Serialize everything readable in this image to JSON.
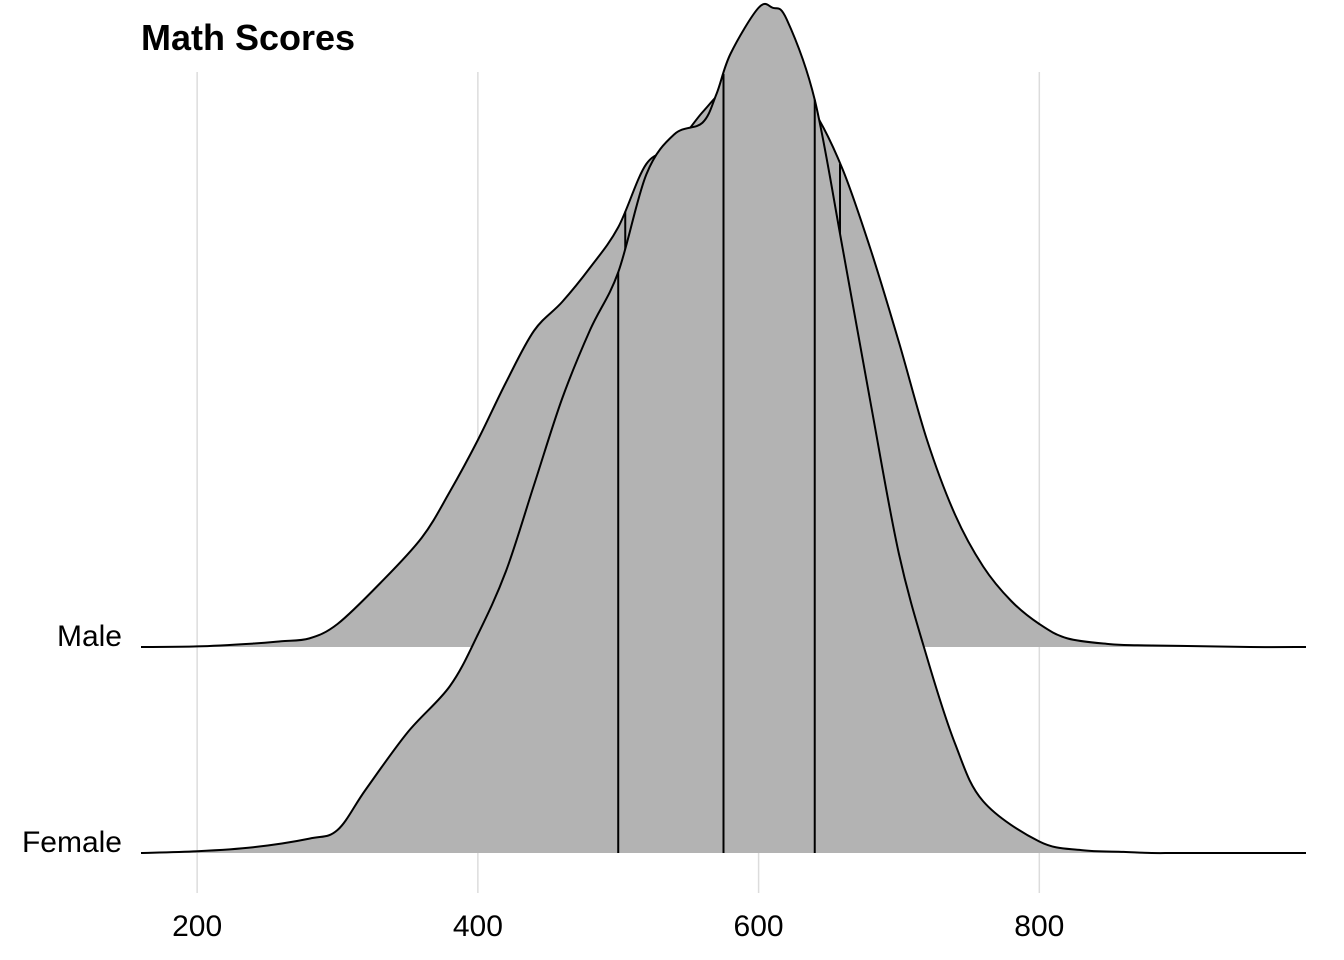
{
  "chart_data": {
    "type": "area",
    "title": "Math Scores",
    "xlabel": "",
    "ylabel": "",
    "xlim": [
      160,
      990
    ],
    "x_ticks": [
      200,
      400,
      600,
      800
    ],
    "x_tick_labels": [
      "200",
      "400",
      "600",
      "800"
    ],
    "grid": "vertical major gridlines",
    "categories": [
      "Male",
      "Female"
    ],
    "series": [
      {
        "name": "Male",
        "quantiles": [
          505,
          589,
          658
        ],
        "density_x": [
          160,
          200,
          240,
          260,
          280,
          300,
          330,
          360,
          380,
          400,
          420,
          440,
          460,
          480,
          500,
          520,
          540,
          560,
          580,
          600,
          610,
          620,
          640,
          660,
          680,
          700,
          720,
          740,
          760,
          780,
          800,
          820,
          850,
          870,
          900,
          950,
          990
        ],
        "density_y": [
          0.0,
          0.001,
          0.006,
          0.01,
          0.015,
          0.04,
          0.11,
          0.19,
          0.27,
          0.36,
          0.46,
          0.55,
          0.6,
          0.66,
          0.73,
          0.84,
          0.87,
          0.93,
          0.98,
          1.0,
          0.998,
          0.99,
          0.93,
          0.83,
          0.69,
          0.53,
          0.36,
          0.23,
          0.14,
          0.08,
          0.04,
          0.015,
          0.005,
          0.003,
          0.002,
          0.0,
          0.0
        ]
      },
      {
        "name": "Female",
        "quantiles": [
          500,
          575,
          640
        ],
        "density_x": [
          160,
          200,
          240,
          280,
          300,
          320,
          350,
          380,
          400,
          420,
          440,
          460,
          480,
          500,
          520,
          540,
          560,
          570,
          580,
          600,
          610,
          620,
          640,
          660,
          680,
          700,
          720,
          740,
          760,
          800,
          830,
          860,
          880,
          900,
          950,
          990
        ],
        "density_y": [
          0.0,
          0.003,
          0.01,
          0.025,
          0.04,
          0.11,
          0.21,
          0.29,
          0.38,
          0.49,
          0.64,
          0.79,
          0.91,
          1.01,
          1.18,
          1.25,
          1.27,
          1.32,
          1.39,
          1.47,
          1.47,
          1.45,
          1.31,
          1.05,
          0.78,
          0.52,
          0.34,
          0.19,
          0.09,
          0.02,
          0.005,
          0.002,
          0.0,
          0.0,
          0.0,
          0.0
        ]
      }
    ],
    "colors": {
      "fill": "#b3b3b3",
      "outline": "#000000",
      "grid": "#dcdcdc"
    }
  }
}
